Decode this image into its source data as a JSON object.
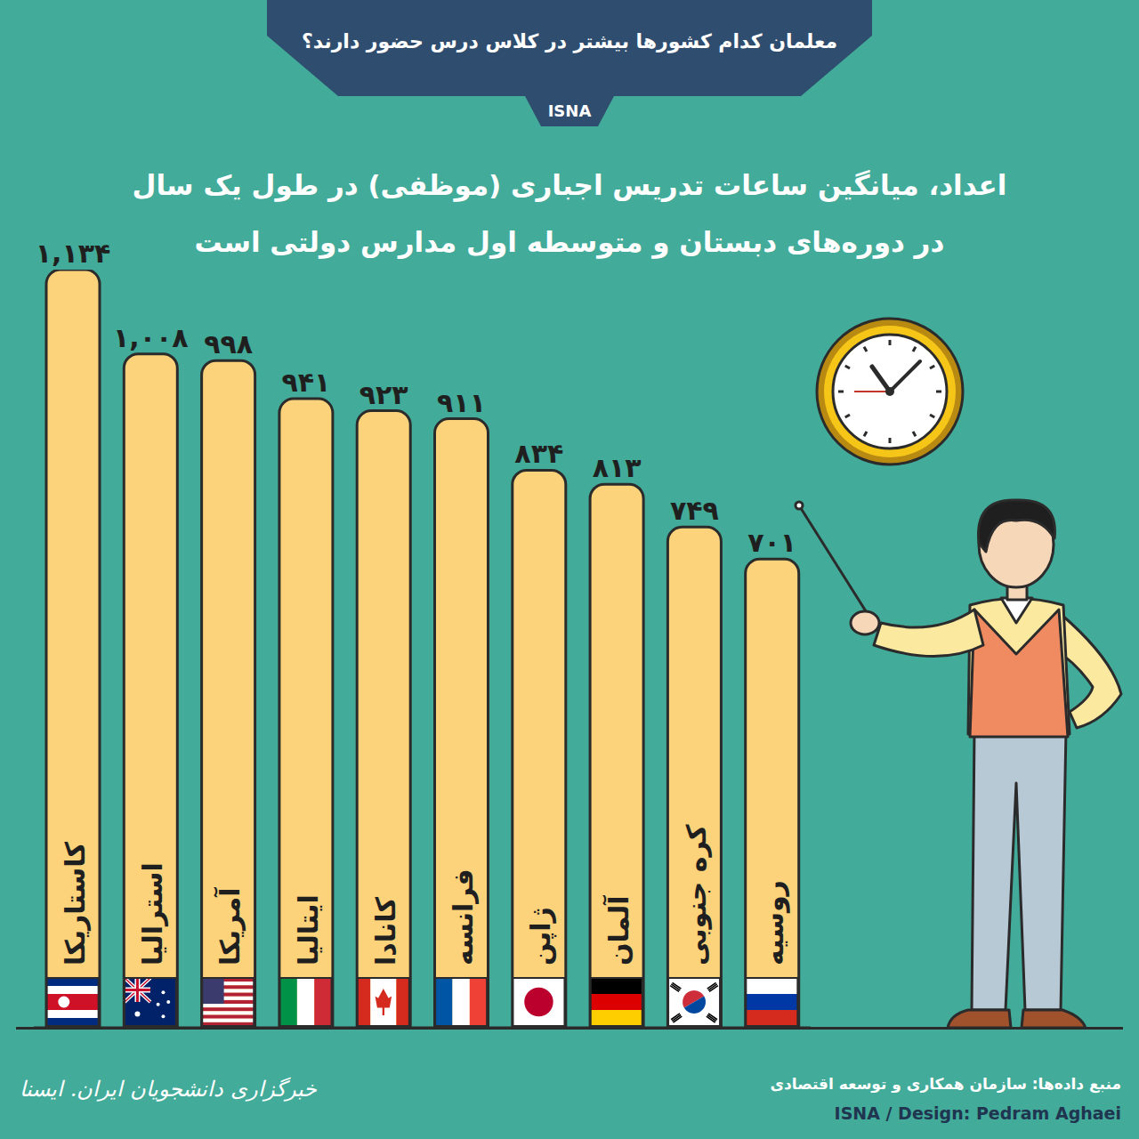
{
  "chart_data": {
    "type": "bar",
    "title": "معلمان کدام کشورها بیشتر در کلاس درس حضور دارند؟",
    "subtitle": [
      "اعداد، میانگین ساعات تدریس اجباری (موظفی) در طول یک سال",
      "در دوره‌های دبستان و متوسطه اول مدارس دولتی است"
    ],
    "annotations": [
      "ISNA",
      "منبع داده‌ها: سازمان همکاری و توسعه اقتصادی",
      "ISNA / Design: Pedram Aghaei",
      "خبرگزاری دانشجویان ایران. ایسنا"
    ],
    "categories": [
      "کاستاریکا",
      "استرالیا",
      "آمریکا",
      "ایتالیا",
      "کانادا",
      "فرانسه",
      "ژاپن",
      "آلمان",
      "کره جنوبی",
      "روسیه"
    ],
    "values": [
      1134,
      1008,
      998,
      941,
      923,
      911,
      834,
      813,
      749,
      701
    ],
    "value_labels": [
      "۱,۱۳۴",
      "۱,۰۰۸",
      "۹۹۸",
      "۹۴۱",
      "۹۲۳",
      "۹۱۱",
      "۸۳۴",
      "۸۱۳",
      "۷۴۹",
      "۷۰۱"
    ],
    "color": "#fcd37a",
    "ylim": [
      0,
      1134
    ],
    "data_labels": true,
    "tick_labels": "x",
    "grid": false
  }
}
